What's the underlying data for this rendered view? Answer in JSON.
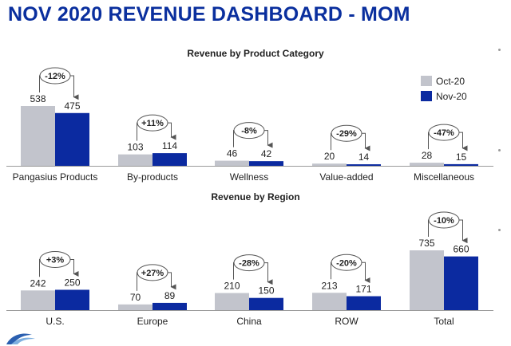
{
  "page": {
    "title": "NOV 2020 REVENUE DASHBOARD - MOM"
  },
  "colors": {
    "title": "#0a2f9e",
    "oct": "#c2c4cc",
    "nov": "#0b2aa0",
    "text": "#222222"
  },
  "chart_data": [
    {
      "type": "bar",
      "title": "Revenue by Product Category",
      "categories": [
        "Pangasius Products",
        "By-products",
        "Wellness",
        "Value-added",
        "Miscellaneous"
      ],
      "series": [
        {
          "name": "Oct-20",
          "values": [
            538,
            103,
            46,
            20,
            28
          ]
        },
        {
          "name": "Nov-20",
          "values": [
            475,
            114,
            42,
            14,
            15
          ]
        }
      ],
      "changes": [
        "-12%",
        "+11%",
        "-8%",
        "-29%",
        "-47%"
      ],
      "legend": "top-right"
    },
    {
      "type": "bar",
      "title": "Revenue by Region",
      "categories": [
        "U.S.",
        "Europe",
        "China",
        "ROW",
        "Total"
      ],
      "series": [
        {
          "name": "Oct-20",
          "values": [
            242,
            70,
            210,
            213,
            735
          ]
        },
        {
          "name": "Nov-20",
          "values": [
            250,
            89,
            150,
            171,
            660
          ]
        }
      ],
      "changes": [
        "+3%",
        "+27%",
        "-28%",
        "-20%",
        "-10%"
      ]
    }
  ]
}
